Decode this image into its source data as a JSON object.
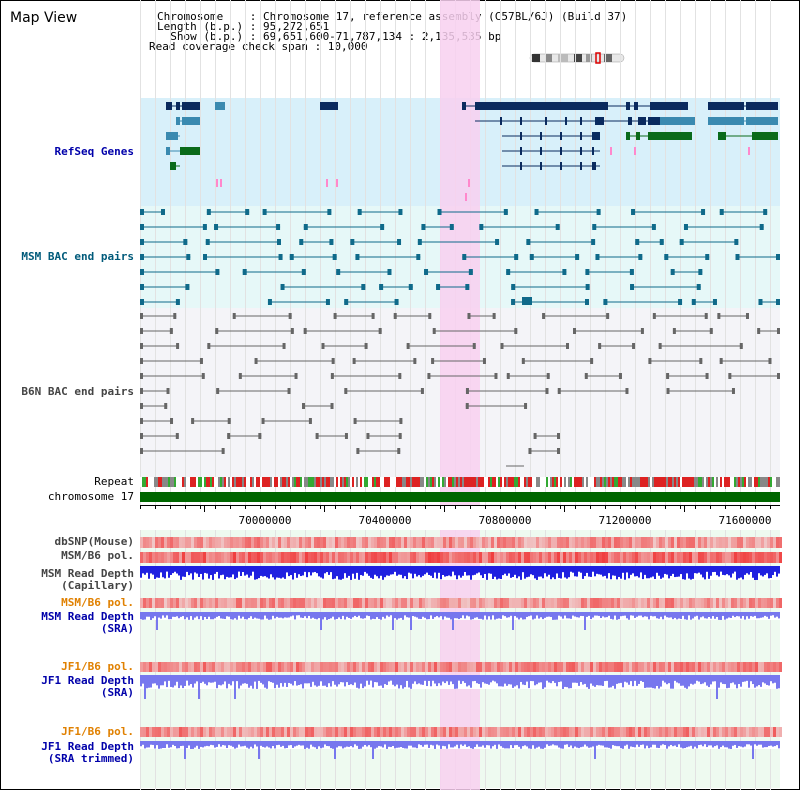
{
  "title": "Map View",
  "info": {
    "line1": "Chromosome    : Chromosome 17, reference assembly (C57BL/6J) (Build 37)",
    "line2": "Length (b.p.) : 95,272,651",
    "line3": "  Show (b.p.) : 69,651,600-71,787,134 : 2,135,535 bp",
    "line4": "Read coverage check span : 10,000"
  },
  "labels": {
    "refseq": "RefSeq Genes",
    "msm_bac": "MSM BAC end pairs",
    "b6n_bac": "B6N BAC end pairs",
    "repeat": "Repeat",
    "chromosome": "chromosome 17",
    "dbsnp": "dbSNP(Mouse)",
    "msm_b6_pol_1": "MSM/B6 pol.",
    "msm_rd_cap_1": "MSM Read Depth",
    "msm_rd_cap_2": "(Capillary)",
    "msm_b6_pol_2": "MSM/B6 pol.",
    "msm_rd_sra_1": "MSM Read Depth",
    "msm_rd_sra_2": "(SRA)",
    "jf1_b6_pol_1": "JF1/B6 pol.",
    "jf1_rd_sra_1": "JF1 Read Depth",
    "jf1_rd_sra_2": "(SRA)",
    "jf1_b6_pol_2": "JF1/B6 pol.",
    "jf1_rd_trim_1": "JF1 Read Depth",
    "jf1_rd_trim_2": "(SRA trimmed)"
  },
  "axis_ticks": [
    "70000000",
    "70400000",
    "70800000",
    "71200000",
    "71600000"
  ],
  "icons": {
    "chromosome_ideogram": "chromosome-ideogram-icon"
  },
  "colors": {
    "refseq_bg": "#d8f0fa",
    "msm_bg": "#e6f8f8",
    "b6n_bg": "#f4f4f8",
    "highlight": "#f8d0f0",
    "gene_dark": "#0a2a5e",
    "gene_mid": "#3a8ab0",
    "gene_green": "#0a6a1a",
    "msm_line": "#0f6a8a",
    "b6n_line": "#666666",
    "chromosome_bar": "#006600",
    "read_depth": "#2020e0",
    "sra_depth": "#7777ee"
  }
}
